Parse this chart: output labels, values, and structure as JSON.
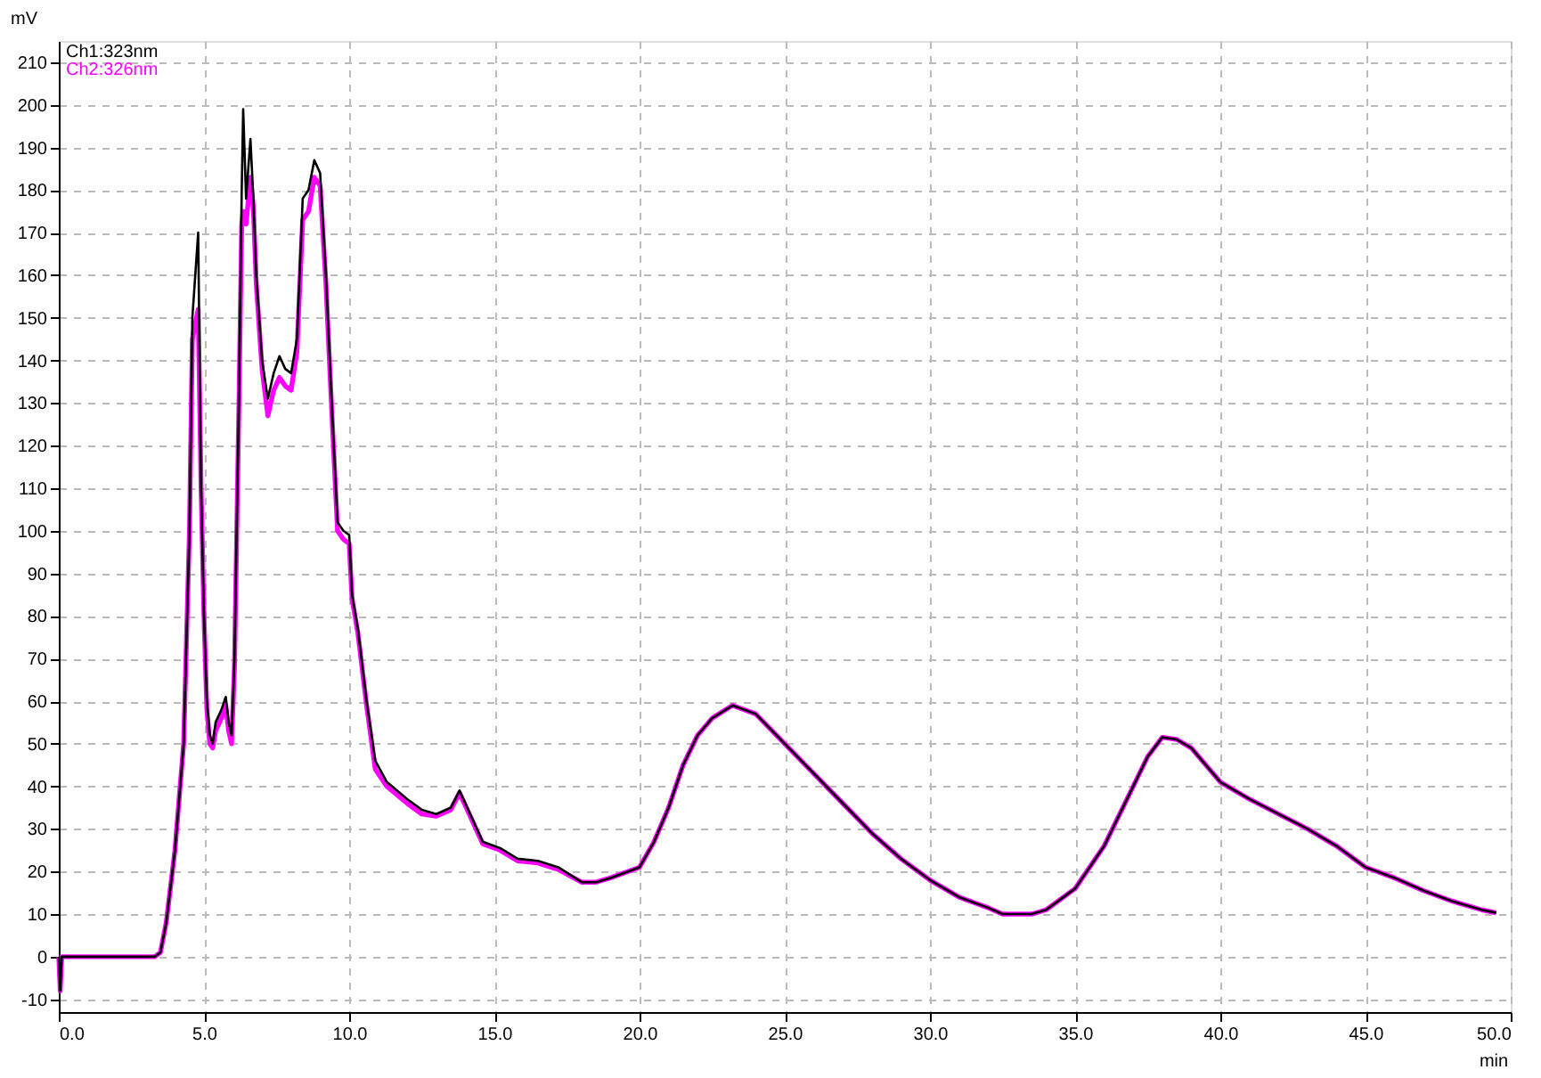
{
  "chart_data": {
    "type": "line",
    "xlabel": "min",
    "ylabel": "mV",
    "xlim": [
      0,
      50
    ],
    "ylim": [
      -13,
      215
    ],
    "xticks": [
      {
        "value": 0,
        "label": "0.0"
      },
      {
        "value": 5,
        "label": "5.0"
      },
      {
        "value": 10,
        "label": "10.0"
      },
      {
        "value": 15,
        "label": "15.0"
      },
      {
        "value": 20,
        "label": "20.0"
      },
      {
        "value": 25,
        "label": "25.0"
      },
      {
        "value": 30,
        "label": "30.0"
      },
      {
        "value": 35,
        "label": "35.0"
      },
      {
        "value": 40,
        "label": "40.0"
      },
      {
        "value": 45,
        "label": "45.0"
      },
      {
        "value": 50,
        "label": "50.0"
      }
    ],
    "yticks": [
      -10,
      0,
      10,
      20,
      30,
      40,
      50,
      60,
      70,
      80,
      90,
      100,
      110,
      120,
      130,
      140,
      150,
      160,
      170,
      180,
      190,
      200,
      210
    ],
    "grid": true,
    "legend": "top left",
    "line_style": "solid",
    "marker": "none",
    "series": [
      {
        "name": "Ch1:323nm",
        "color": "#000000",
        "x": [
          0,
          0.05,
          0.1,
          3.3,
          3.5,
          3.7,
          4.0,
          4.3,
          4.5,
          4.6,
          4.8,
          4.9,
          5.0,
          5.1,
          5.2,
          5.3,
          5.4,
          5.6,
          5.75,
          5.85,
          5.95,
          6.05,
          6.2,
          6.3,
          6.35,
          6.45,
          6.6,
          6.7,
          6.8,
          7.0,
          7.2,
          7.4,
          7.6,
          7.8,
          8.0,
          8.2,
          8.4,
          8.6,
          8.8,
          9.0,
          9.2,
          9.4,
          9.6,
          9.8,
          10.0,
          10.1,
          10.3,
          10.6,
          10.9,
          11.3,
          12,
          12.5,
          13,
          13.5,
          13.8,
          14.2,
          14.6,
          15.2,
          15.8,
          16.5,
          17.2,
          18,
          18.5,
          19,
          20,
          20.5,
          21,
          21.5,
          22,
          22.5,
          23.2,
          24,
          25,
          26,
          27,
          28,
          29,
          30,
          31,
          32,
          32.5,
          33.5,
          34,
          35,
          36,
          37,
          37.5,
          38,
          38.5,
          39,
          40,
          41,
          42,
          43,
          44,
          45,
          46,
          47,
          48,
          49,
          49.5
        ],
        "values": [
          0,
          -8,
          0,
          0,
          1,
          8,
          25,
          50,
          100,
          150,
          170,
          110,
          80,
          60,
          52,
          50,
          55,
          58,
          61,
          55,
          52,
          70,
          130,
          180,
          199,
          178,
          192,
          178,
          160,
          140,
          131,
          137,
          141,
          138,
          137,
          145,
          178,
          180,
          187,
          184,
          160,
          130,
          102,
          100,
          99,
          85,
          77,
          60,
          46,
          41,
          37,
          34.5,
          33.5,
          35,
          39,
          33,
          27,
          25.5,
          23,
          22.5,
          21,
          17.5,
          17.5,
          18.5,
          21,
          27,
          35,
          45,
          52,
          56,
          59,
          57,
          50,
          43,
          36,
          29,
          23,
          18,
          14,
          11.5,
          10,
          10,
          11,
          16,
          26,
          40,
          47,
          51.5,
          51,
          49,
          41,
          37,
          33.5,
          30,
          26,
          21,
          18.5,
          15.5,
          13,
          11,
          10.3
        ]
      },
      {
        "name": "Ch2:326nm",
        "color": "#ff00ff",
        "x": [
          0,
          0.05,
          0.1,
          3.3,
          3.5,
          3.7,
          4.0,
          4.3,
          4.5,
          4.6,
          4.8,
          4.9,
          5.0,
          5.1,
          5.2,
          5.3,
          5.4,
          5.6,
          5.75,
          5.85,
          5.95,
          6.05,
          6.2,
          6.3,
          6.35,
          6.45,
          6.6,
          6.7,
          6.8,
          7.0,
          7.2,
          7.4,
          7.6,
          7.8,
          8.0,
          8.2,
          8.4,
          8.6,
          8.8,
          9.0,
          9.2,
          9.4,
          9.6,
          9.8,
          10.0,
          10.1,
          10.3,
          10.6,
          10.9,
          11.3,
          12,
          12.5,
          13,
          13.5,
          13.8,
          14.2,
          14.6,
          15.2,
          15.8,
          16.5,
          17.2,
          18,
          18.5,
          19,
          20,
          20.5,
          21,
          21.5,
          22,
          22.5,
          23.2,
          24,
          25,
          26,
          27,
          28,
          29,
          30,
          31,
          32,
          32.5,
          33.5,
          34,
          35,
          36,
          37,
          37.5,
          38,
          38.5,
          39,
          40,
          41,
          42,
          43,
          44,
          45,
          46,
          47,
          48,
          49,
          49.5
        ],
        "values": [
          0,
          -8,
          0,
          0,
          1,
          8,
          25,
          50,
          100,
          145,
          152,
          110,
          80,
          58,
          50,
          49,
          53,
          56,
          59,
          53,
          50,
          68,
          128,
          172,
          175,
          172,
          183,
          176,
          158,
          138,
          127,
          133,
          136,
          134,
          133,
          142,
          173,
          175,
          183,
          181,
          158,
          128,
          100,
          98,
          97,
          84,
          76,
          59,
          44,
          40,
          36,
          33.5,
          33,
          34.5,
          38.5,
          32.5,
          26.5,
          25,
          22.5,
          22,
          20.5,
          17.5,
          17.5,
          18.5,
          21,
          27,
          35,
          45,
          52,
          56,
          59,
          57,
          50,
          43,
          36,
          29,
          23,
          18,
          14,
          11.5,
          10,
          10,
          11,
          16,
          26,
          40,
          47,
          51.5,
          51,
          49,
          41,
          37,
          33.5,
          30,
          26,
          21,
          18.5,
          15.5,
          13,
          11,
          10.3
        ]
      }
    ]
  }
}
